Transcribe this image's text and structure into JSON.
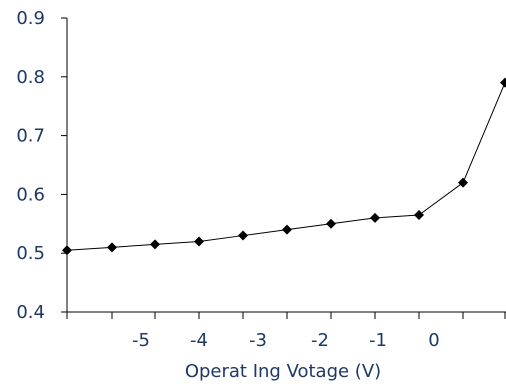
{
  "chart_data": {
    "type": "line",
    "title": "",
    "xlabel": "Operat Ing Votage (V)",
    "ylabel": "",
    "x": [
      -6,
      -5,
      -4.5,
      -4,
      -3,
      -2.5,
      -2,
      -1,
      -0.5,
      0,
      0.5
    ],
    "y": [
      0.505,
      0.51,
      0.515,
      0.52,
      0.53,
      0.54,
      0.55,
      0.56,
      0.565,
      0.62,
      0.79
    ],
    "ylim": [
      0.4,
      0.9
    ],
    "yticks": [
      "0.4",
      "0.5",
      "0.6",
      "0.7",
      "0.8",
      "0.9"
    ],
    "xtick_labels": [
      "-5",
      "-4",
      "-3",
      "-2",
      "-1",
      "0"
    ],
    "marker": "diamond",
    "line_color": "#000000",
    "label_color": "#1f3864",
    "grid": false,
    "legend": "none"
  }
}
